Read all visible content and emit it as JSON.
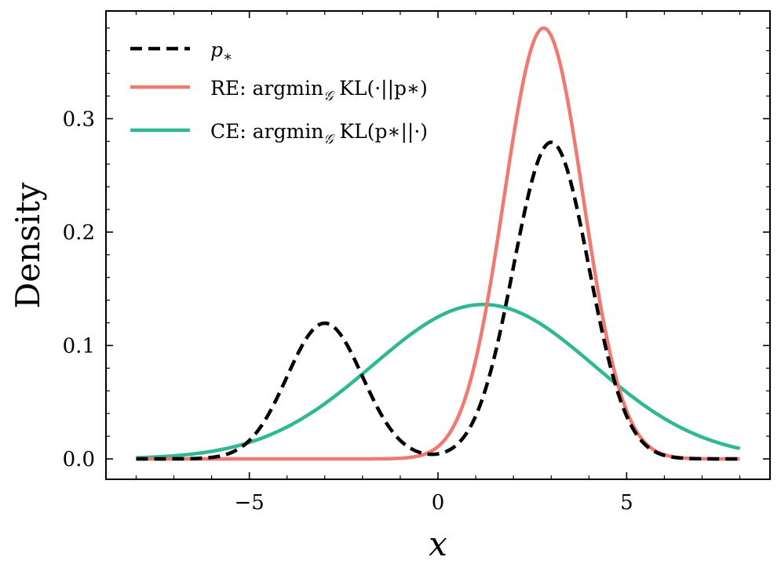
{
  "chart_data": {
    "type": "line",
    "xlabel": "x",
    "ylabel": "Density",
    "xlim": [
      -8.8,
      8.8
    ],
    "ylim": [
      -0.018,
      0.395
    ],
    "xticks": [
      -5,
      0,
      5
    ],
    "xtick_labels": [
      "−5",
      "0",
      "5"
    ],
    "yticks": [
      0.0,
      0.1,
      0.2,
      0.3
    ],
    "ytick_labels": [
      "0.0",
      "0.1",
      "0.2",
      "0.3"
    ],
    "x_range": [
      -8,
      8
    ],
    "series": [
      {
        "key": "p_star",
        "name": "p*",
        "style": "dashed",
        "color": "#000000",
        "components": [
          {
            "weight": 0.3,
            "mean": -3.0,
            "std": 1.0
          },
          {
            "weight": 0.7,
            "mean": 3.0,
            "std": 1.0
          }
        ],
        "peaks": [
          {
            "x": -3.0,
            "y": 0.12
          },
          {
            "x": 3.0,
            "y": 0.28
          }
        ]
      },
      {
        "key": "re",
        "name": "RE: argmin_G KL(·||p*)",
        "style": "solid",
        "color": "#f07a72",
        "components": [
          {
            "weight": 1.0,
            "mean": 2.8,
            "std": 1.05
          }
        ],
        "peaks": [
          {
            "x": 2.8,
            "y": 0.379
          }
        ]
      },
      {
        "key": "ce",
        "name": "CE: argmin_G KL(p*||·)",
        "style": "solid",
        "color": "#2fb894",
        "components": [
          {
            "weight": 1.0,
            "mean": 1.2,
            "std": 2.93
          }
        ],
        "peaks": [
          {
            "x": 1.2,
            "y": 0.136
          }
        ]
      }
    ],
    "legend": {
      "position": "top-left",
      "entries": [
        {
          "main": "p",
          "sub": "∗",
          "suffix": ""
        },
        {
          "main": "RE: argmin",
          "sub": "𝒢",
          "suffix": " KL(·||p∗)"
        },
        {
          "main": "CE: argmin",
          "sub": "𝒢",
          "suffix": " KL(p∗||·)"
        }
      ]
    }
  }
}
